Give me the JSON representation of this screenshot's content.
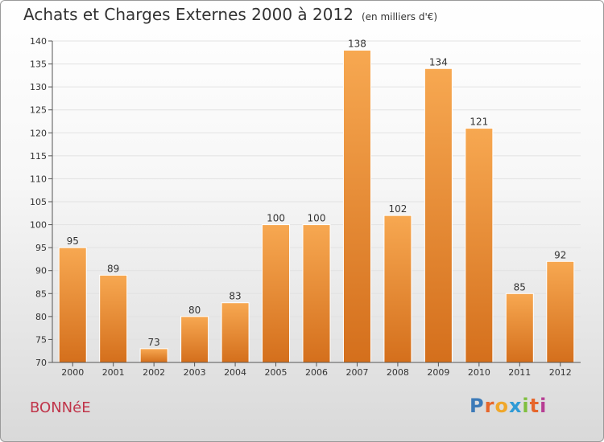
{
  "header": {
    "title": "Achats et Charges Externes 2000 à 2012",
    "unit": "(en milliers d'€)"
  },
  "footer": {
    "town": "BONNéE",
    "logo_letters": [
      "P",
      "r",
      "o",
      "x",
      "i",
      "t",
      "i"
    ]
  },
  "colors": {
    "bar_light": "#f7a851",
    "bar_dark": "#d46f1c",
    "axis": "#555555",
    "grid": "#e2e2e2",
    "town": "#c0354a",
    "logo": [
      "#3c7ab8",
      "#e6662b",
      "#f0a72a",
      "#2e9ad6",
      "#7fbf3f",
      "#e6662b",
      "#b73e94"
    ]
  },
  "chart_data": {
    "type": "bar",
    "categories": [
      "2000",
      "2001",
      "2002",
      "2003",
      "2004",
      "2005",
      "2006",
      "2007",
      "2008",
      "2009",
      "2010",
      "2011",
      "2012"
    ],
    "values": [
      95,
      89,
      73,
      80,
      83,
      100,
      100,
      138,
      102,
      134,
      121,
      85,
      92
    ],
    "ylim": [
      70,
      140
    ],
    "yticks": [
      70,
      75,
      80,
      85,
      90,
      95,
      100,
      105,
      110,
      115,
      120,
      125,
      130,
      135,
      140
    ],
    "grid": true,
    "data_labels": true
  }
}
